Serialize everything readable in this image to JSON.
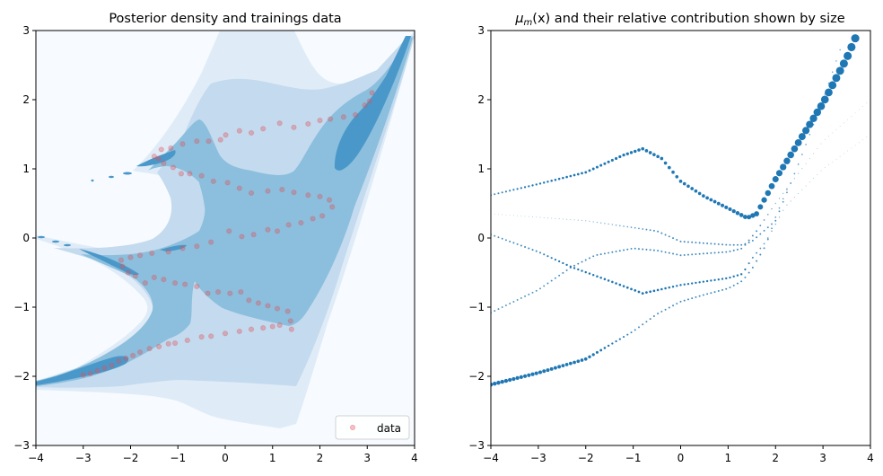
{
  "chart_data": [
    {
      "type": "contour+scatter",
      "title": "Posterior density and trainings data",
      "xlim": [
        -4,
        4
      ],
      "ylim": [
        -3,
        3
      ],
      "xticks": [
        "−4",
        "−3",
        "−2",
        "−1",
        "0",
        "1",
        "2",
        "3",
        "4"
      ],
      "yticks": [
        "−3",
        "−2",
        "−1",
        "0",
        "1",
        "2",
        "3"
      ],
      "legend": {
        "placement": "bottom-right",
        "entries": [
          "data"
        ]
      },
      "colors": {
        "background": "#f7fbff",
        "levels": [
          "#dfecf7",
          "#c4daee",
          "#8bbfdd",
          "#4a98c9"
        ],
        "data": "#e0505a"
      },
      "series": [
        {
          "name": "data",
          "points": [
            [
              -3.0,
              -1.98
            ],
            [
              -2.85,
              -1.96
            ],
            [
              -2.7,
              -1.92
            ],
            [
              -2.55,
              -1.88
            ],
            [
              -2.4,
              -1.84
            ],
            [
              -2.25,
              -1.78
            ],
            [
              -2.1,
              -1.74
            ],
            [
              -1.95,
              -1.7
            ],
            [
              -1.8,
              -1.65
            ],
            [
              -1.6,
              -1.6
            ],
            [
              -1.4,
              -1.57
            ],
            [
              -1.2,
              -1.53
            ],
            [
              -1.06,
              -1.52
            ],
            [
              -0.8,
              -1.48
            ],
            [
              -0.5,
              -1.43
            ],
            [
              -0.3,
              -1.42
            ],
            [
              0.0,
              -1.38
            ],
            [
              0.3,
              -1.35
            ],
            [
              0.55,
              -1.32
            ],
            [
              0.8,
              -1.3
            ],
            [
              1.0,
              -1.28
            ],
            [
              1.15,
              -1.26
            ],
            [
              1.4,
              -1.32
            ],
            [
              1.38,
              -1.2
            ],
            [
              1.32,
              -1.06
            ],
            [
              1.1,
              -1.02
            ],
            [
              0.9,
              -0.98
            ],
            [
              0.7,
              -0.94
            ],
            [
              0.5,
              -0.9
            ],
            [
              0.33,
              -0.78
            ],
            [
              0.1,
              -0.8
            ],
            [
              -0.15,
              -0.78
            ],
            [
              -0.37,
              -0.8
            ],
            [
              -0.6,
              -0.7
            ],
            [
              -0.85,
              -0.67
            ],
            [
              -1.06,
              -0.65
            ],
            [
              -1.3,
              -0.6
            ],
            [
              -1.5,
              -0.57
            ],
            [
              -1.69,
              -0.65
            ],
            [
              -1.9,
              -0.55
            ],
            [
              -2.05,
              -0.5
            ],
            [
              -2.17,
              -0.41
            ],
            [
              -2.2,
              -0.32
            ],
            [
              -2.0,
              -0.28
            ],
            [
              -1.8,
              -0.25
            ],
            [
              -1.55,
              -0.22
            ],
            [
              -1.2,
              -0.2
            ],
            [
              -0.9,
              -0.15
            ],
            [
              -0.6,
              -0.12
            ],
            [
              -0.3,
              -0.06
            ],
            [
              0.08,
              0.1
            ],
            [
              0.35,
              0.02
            ],
            [
              0.6,
              0.05
            ],
            [
              0.9,
              0.12
            ],
            [
              1.1,
              0.1
            ],
            [
              1.34,
              0.19
            ],
            [
              1.6,
              0.22
            ],
            [
              1.85,
              0.28
            ],
            [
              2.05,
              0.32
            ],
            [
              2.26,
              0.45
            ],
            [
              2.2,
              0.55
            ],
            [
              2.0,
              0.6
            ],
            [
              1.75,
              0.62
            ],
            [
              1.45,
              0.66
            ],
            [
              1.2,
              0.7
            ],
            [
              0.9,
              0.68
            ],
            [
              0.55,
              0.65
            ],
            [
              0.3,
              0.72
            ],
            [
              0.05,
              0.8
            ],
            [
              -0.25,
              0.82
            ],
            [
              -0.5,
              0.9
            ],
            [
              -0.75,
              0.93
            ],
            [
              -0.93,
              0.93
            ],
            [
              -1.1,
              1.02
            ],
            [
              -1.3,
              1.08
            ],
            [
              -1.41,
              1.15
            ],
            [
              -1.5,
              1.18
            ],
            [
              -1.35,
              1.28
            ],
            [
              -1.15,
              1.3
            ],
            [
              -0.9,
              1.36
            ],
            [
              -0.6,
              1.4
            ],
            [
              -0.35,
              1.4
            ],
            [
              -0.1,
              1.42
            ],
            [
              0.01,
              1.49
            ],
            [
              0.3,
              1.55
            ],
            [
              0.55,
              1.52
            ],
            [
              0.8,
              1.58
            ],
            [
              1.15,
              1.66
            ],
            [
              1.45,
              1.6
            ],
            [
              1.75,
              1.65
            ],
            [
              2.0,
              1.7
            ],
            [
              2.22,
              1.72
            ],
            [
              2.5,
              1.75
            ],
            [
              2.75,
              1.78
            ],
            [
              2.95,
              1.92
            ],
            [
              3.05,
              1.98
            ],
            [
              3.1,
              2.1
            ]
          ]
        }
      ]
    },
    {
      "type": "scatter",
      "title": {
        "mu": "μ",
        "sub": "m",
        "args": "(x)",
        "rest": " and their relative contribution shown by size"
      },
      "xlim": [
        -4,
        4
      ],
      "ylim": [
        -3,
        3
      ],
      "xticks": [
        "−4",
        "−3",
        "−2",
        "−1",
        "0",
        "1",
        "2",
        "3",
        "4"
      ],
      "yticks": [
        "−3",
        "−2",
        "−1",
        "0",
        "1",
        "2",
        "3"
      ],
      "color": "#1f77b4",
      "series": [
        {
          "points": [
            [
              -4,
              0.62,
              0.15
            ],
            [
              -3,
              0.78,
              0.2
            ],
            [
              -2,
              0.95,
              0.25
            ],
            [
              -1.2,
              1.2,
              0.3
            ],
            [
              -0.8,
              1.29,
              0.35
            ],
            [
              -0.4,
              1.15,
              0.35
            ],
            [
              0,
              0.82,
              0.35
            ],
            [
              0.5,
              0.6,
              0.35
            ],
            [
              1,
              0.43,
              0.4
            ],
            [
              1.4,
              0.29,
              0.5
            ],
            [
              1.6,
              0.35,
              0.6
            ],
            [
              2,
              0.85,
              0.75
            ],
            [
              2.5,
              1.4,
              0.85
            ],
            [
              3,
              1.95,
              0.95
            ],
            [
              3.5,
              2.6,
              1
            ],
            [
              3.75,
              3.0,
              1
            ]
          ]
        },
        {
          "points": [
            [
              -4,
              0.35,
              0.02
            ],
            [
              -2,
              0.25,
              0.06
            ],
            [
              -1,
              0.15,
              0.12
            ],
            [
              -0.5,
              0.1,
              0.15
            ],
            [
              0,
              -0.05,
              0.15
            ],
            [
              1,
              -0.1,
              0.15
            ],
            [
              1.3,
              -0.1,
              0.15
            ],
            [
              1.5,
              -0.05,
              0.15
            ],
            [
              2,
              0.25,
              0.14
            ],
            [
              2.5,
              1.1,
              0.12
            ],
            [
              3.0,
              2.0,
              0.1
            ],
            [
              3.4,
              2.8,
              0.1
            ]
          ]
        },
        {
          "points": [
            [
              -4,
              0.05,
              0.14
            ],
            [
              -3,
              -0.2,
              0.16
            ],
            [
              -2.3,
              -0.42,
              0.2
            ],
            [
              -1.5,
              -0.62,
              0.22
            ],
            [
              -0.8,
              -0.8,
              0.25
            ],
            [
              0,
              -0.68,
              0.2
            ],
            [
              1,
              -0.58,
              0.2
            ],
            [
              1.3,
              -0.52,
              0.2
            ],
            [
              1.5,
              -0.3,
              0.15
            ],
            [
              1.8,
              -0.05,
              0.12
            ],
            [
              2.2,
              0.45,
              0.06
            ],
            [
              3,
              1.0,
              0.03
            ],
            [
              4,
              1.5,
              0.02
            ]
          ]
        },
        {
          "points": [
            [
              -4,
              -1.08,
              0.14
            ],
            [
              -3,
              -0.75,
              0.14
            ],
            [
              -2.3,
              -0.42,
              0.15
            ],
            [
              -1.8,
              -0.25,
              0.15
            ],
            [
              -1,
              -0.15,
              0.15
            ],
            [
              -0.5,
              -0.18,
              0.15
            ],
            [
              0,
              -0.25,
              0.15
            ],
            [
              1,
              -0.2,
              0.15
            ],
            [
              1.3,
              -0.15,
              0.15
            ],
            [
              1.6,
              0.1,
              0.15
            ],
            [
              2,
              0.5,
              0.08
            ],
            [
              3,
              1.4,
              0.03
            ],
            [
              4,
              2.0,
              0.02
            ]
          ]
        },
        {
          "points": [
            [
              -4,
              -2.12,
              0.45
            ],
            [
              -3,
              -1.95,
              0.4
            ],
            [
              -2,
              -1.75,
              0.35
            ],
            [
              -1.5,
              -1.55,
              0.2
            ],
            [
              -1,
              -1.35,
              0.15
            ],
            [
              -0.5,
              -1.1,
              0.15
            ],
            [
              0,
              -0.92,
              0.15
            ],
            [
              0.5,
              -0.82,
              0.15
            ],
            [
              1,
              -0.73,
              0.15
            ],
            [
              1.3,
              -0.62,
              0.15
            ],
            [
              1.5,
              -0.45,
              0.15
            ],
            [
              1.8,
              -0.1,
              0.15
            ],
            [
              2.0,
              0.3,
              0.12
            ],
            [
              2.3,
              0.8,
              0.1
            ]
          ]
        }
      ]
    }
  ]
}
